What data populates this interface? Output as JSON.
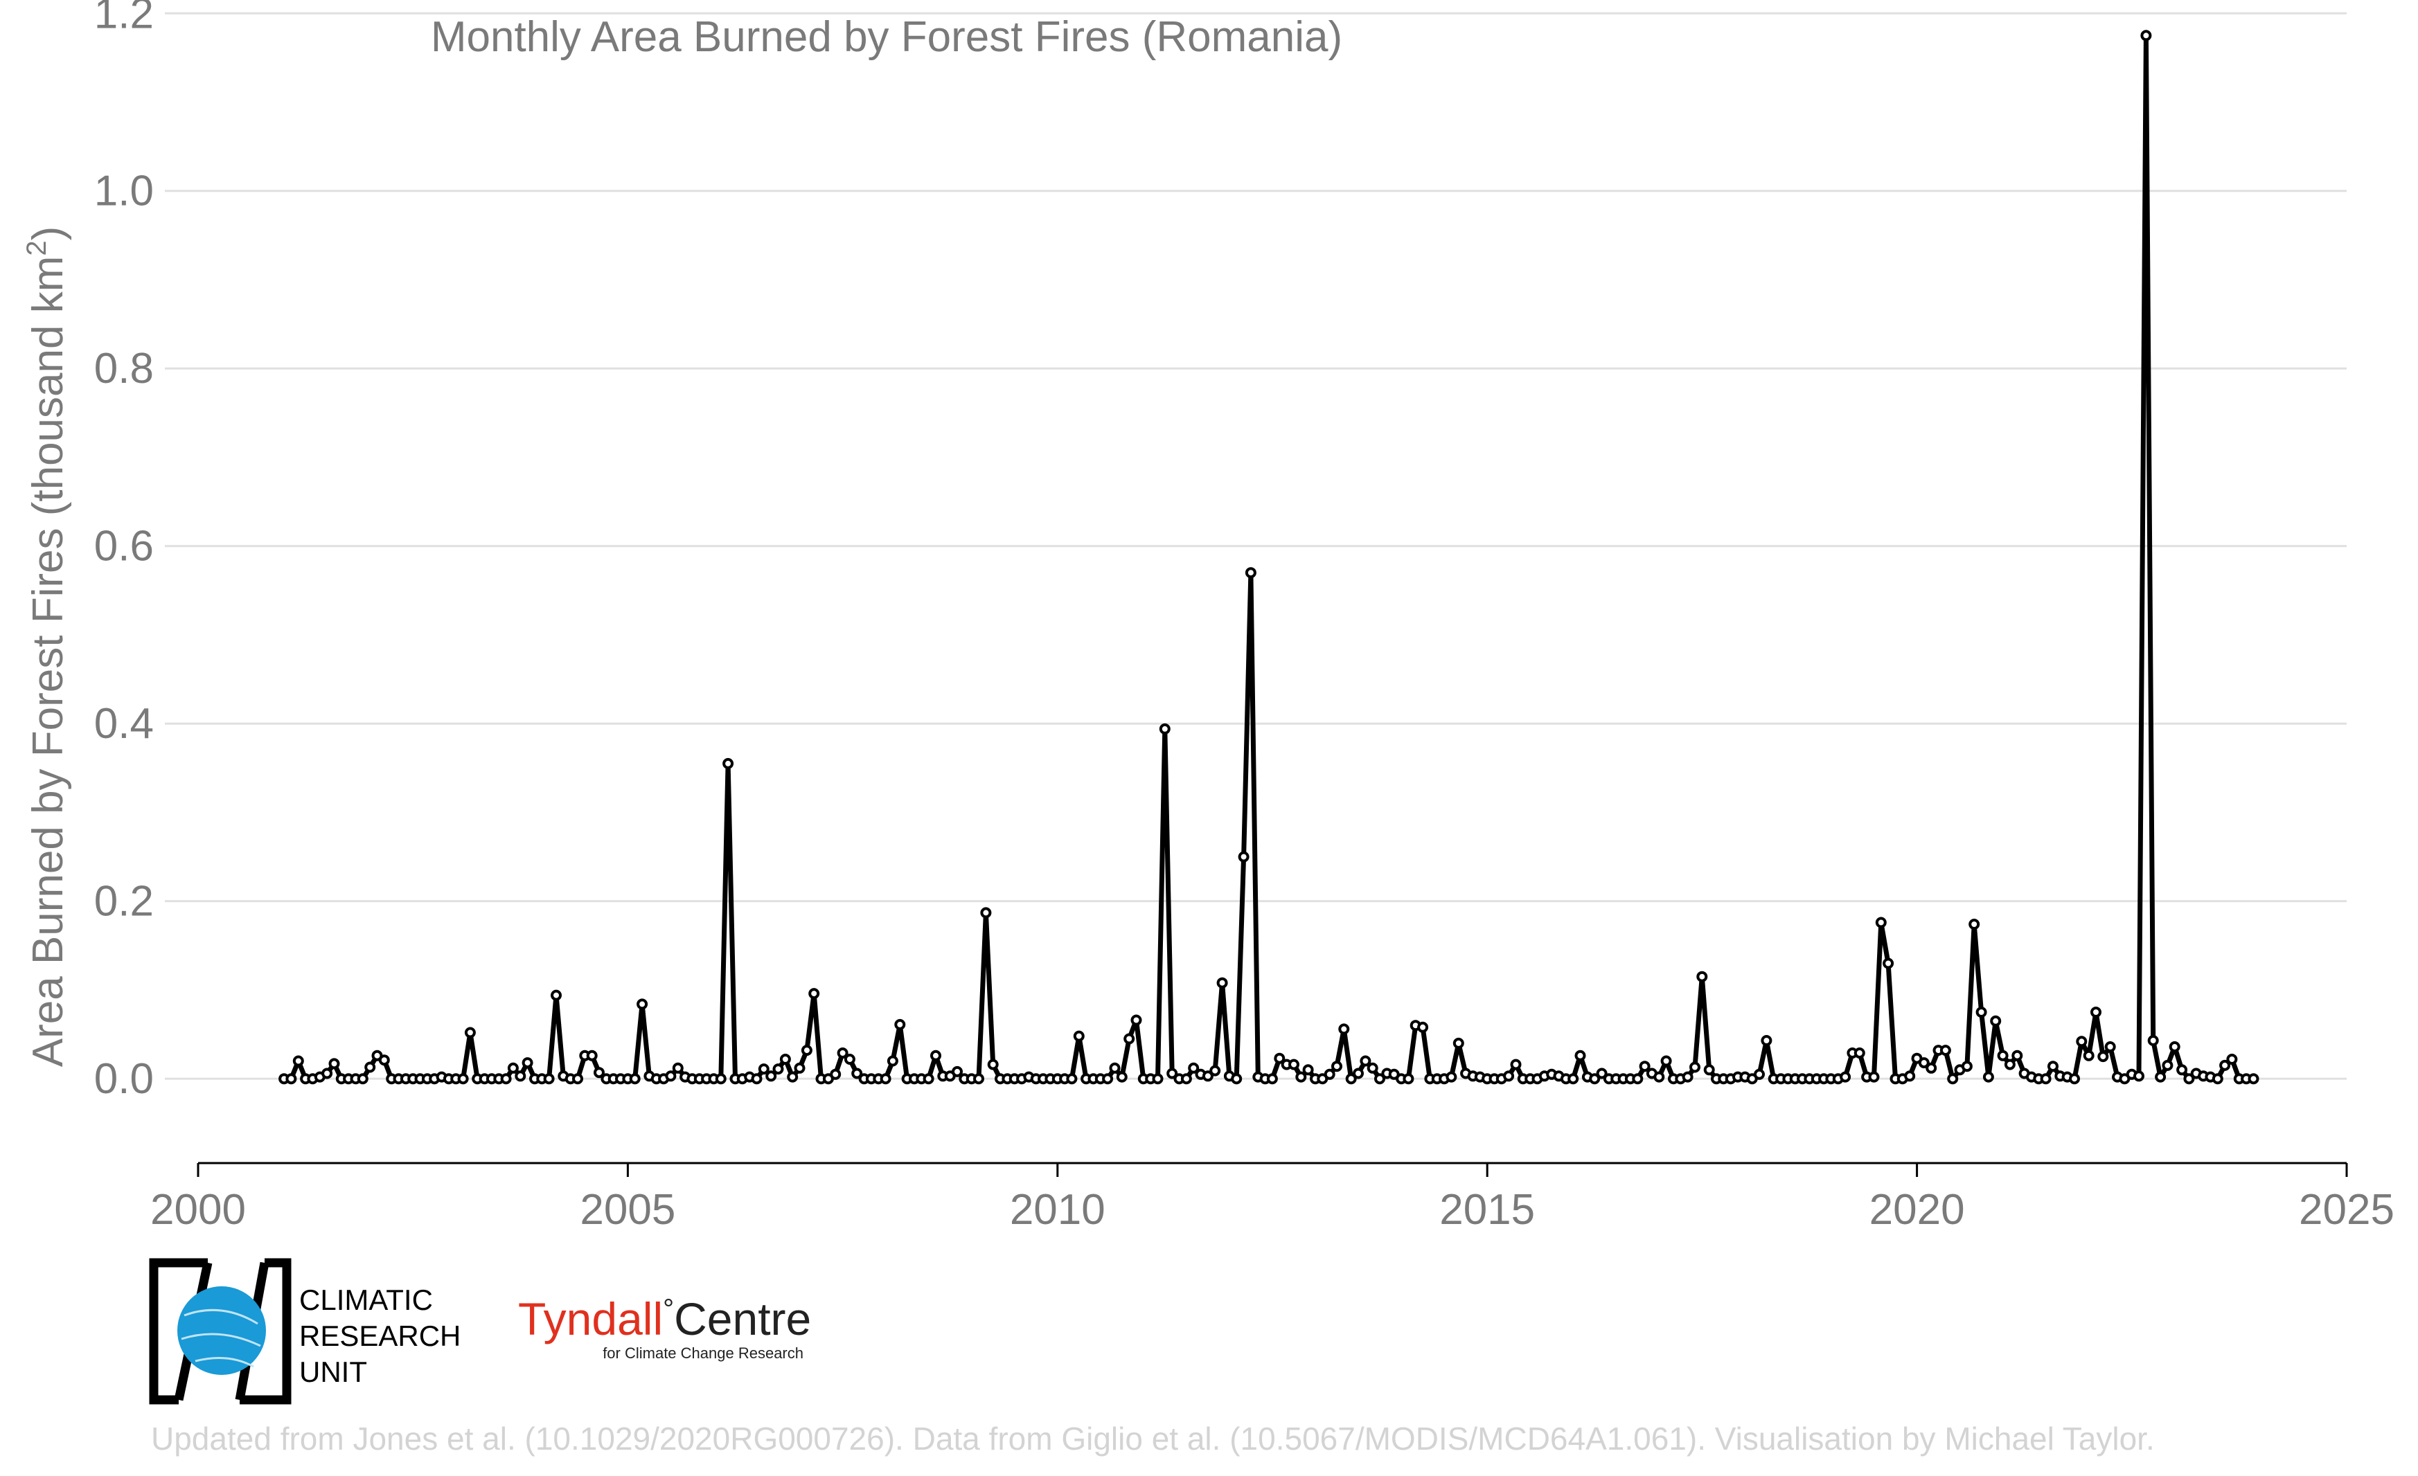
{
  "chart_data": {
    "type": "line",
    "title": "Monthly Area Burned by Forest Fires (Romania)",
    "ylabel_main": "Area Burned by Forest Fires (thousand km",
    "ylabel_sup": "2",
    "ylabel_end": ")",
    "xlim": [
      2000,
      2025
    ],
    "ylim": [
      -0.095,
      1.215
    ],
    "x_ticks": [
      2000,
      2005,
      2010,
      2015,
      2020,
      2025
    ],
    "y_ticks": [
      0.0,
      0.2,
      0.4,
      0.6,
      0.8,
      1.0,
      1.2
    ],
    "y_tick_labels": [
      "0.0",
      "0.2",
      "0.4",
      "0.6",
      "0.8",
      "1.0",
      "1.2"
    ],
    "x_start": 2001.0,
    "x_step": 0.08333,
    "grid": "horizontal",
    "line_color": "#000000",
    "marker_fill": "#ffffff",
    "series": [
      {
        "values": [
          0.0,
          0.0,
          0.02,
          0.0,
          0.0,
          0.002,
          0.006,
          0.017,
          0.0,
          0.0,
          0.0,
          0.0,
          0.013,
          0.026,
          0.021,
          0.0,
          0.0,
          0.0,
          0.0,
          0.0,
          0.0,
          0.0,
          0.002,
          0.0,
          0.0,
          0.0,
          0.052,
          0.0,
          0.0,
          0.0,
          0.0,
          0.0,
          0.012,
          0.003,
          0.018,
          0.0,
          0.0,
          0.0,
          0.094,
          0.003,
          0.0,
          0.0,
          0.026,
          0.026,
          0.007,
          0.0,
          0.0,
          0.0,
          0.0,
          0.0,
          0.084,
          0.003,
          0.0,
          0.0,
          0.003,
          0.012,
          0.002,
          0.0,
          0.0,
          0.0,
          0.0,
          0.0,
          0.355,
          0.0,
          0.0,
          0.002,
          0.0,
          0.011,
          0.003,
          0.011,
          0.022,
          0.002,
          0.012,
          0.032,
          0.096,
          0.0,
          0.0,
          0.005,
          0.029,
          0.022,
          0.006,
          0.0,
          0.0,
          0.0,
          0.0,
          0.02,
          0.061,
          0.0,
          0.0,
          0.0,
          0.0,
          0.026,
          0.003,
          0.003,
          0.008,
          0.0,
          0.0,
          0.0,
          0.187,
          0.016,
          0.0,
          0.0,
          0.0,
          0.0,
          0.002,
          0.0,
          0.0,
          0.0,
          0.0,
          0.0,
          0.0,
          0.048,
          0.0,
          0.0,
          0.0,
          0.0,
          0.012,
          0.002,
          0.045,
          0.066,
          0.0,
          0.0,
          0.0,
          0.394,
          0.006,
          0.0,
          0.0,
          0.012,
          0.005,
          0.003,
          0.009,
          0.108,
          0.003,
          0.0,
          0.25,
          0.57,
          0.002,
          0.0,
          0.0,
          0.023,
          0.016,
          0.016,
          0.002,
          0.01,
          0.0,
          0.0,
          0.005,
          0.014,
          0.056,
          0.0,
          0.006,
          0.02,
          0.012,
          0.0,
          0.006,
          0.005,
          0.0,
          0.0,
          0.06,
          0.058,
          0.0,
          0.0,
          0.0,
          0.002,
          0.04,
          0.006,
          0.003,
          0.002,
          0.0,
          0.0,
          0.0,
          0.003,
          0.016,
          0.0,
          0.0,
          0.0,
          0.003,
          0.005,
          0.003,
          0.0,
          0.0,
          0.026,
          0.002,
          0.0,
          0.006,
          0.0,
          0.0,
          0.0,
          0.0,
          0.0,
          0.014,
          0.006,
          0.002,
          0.02,
          0.0,
          0.0,
          0.002,
          0.013,
          0.115,
          0.01,
          0.0,
          0.0,
          0.0,
          0.002,
          0.002,
          0.0,
          0.005,
          0.043,
          0.0,
          0.0,
          0.0,
          0.0,
          0.0,
          0.0,
          0.0,
          0.0,
          0.0,
          0.0,
          0.002,
          0.029,
          0.029,
          0.002,
          0.002,
          0.176,
          0.13,
          0.0,
          0.0,
          0.003,
          0.023,
          0.018,
          0.012,
          0.032,
          0.032,
          0.0,
          0.01,
          0.014,
          0.174,
          0.075,
          0.002,
          0.065,
          0.026,
          0.016,
          0.026,
          0.006,
          0.002,
          0.0,
          0.0,
          0.014,
          0.003,
          0.002,
          0.0,
          0.042,
          0.026,
          0.075,
          0.025,
          0.036,
          0.002,
          0.0,
          0.005,
          0.003,
          1.175,
          0.043,
          0.002,
          0.015,
          0.036,
          0.01,
          0.0,
          0.006,
          0.003,
          0.002,
          0.0,
          0.015,
          0.022,
          0.0,
          0.0,
          0.0
        ]
      }
    ]
  },
  "logos": {
    "cru_line1": "CLIMATIC",
    "cru_line2": "RESEARCH",
    "cru_line3": "UNIT",
    "tyndall_part1": "Tyndall",
    "tyndall_degree": "°",
    "tyndall_part2": "Centre",
    "tyndall_sub": "for Climate Change Research",
    "tyndall_red": "#e0301e",
    "cru_blue": "#1a9ad6"
  },
  "footer": {
    "credit": "Updated from Jones et al. (10.1029/2020RG000726). Data from Giglio et al. (10.5067/MODIS/MCD64A1.061). Visualisation by Michael Taylor."
  }
}
